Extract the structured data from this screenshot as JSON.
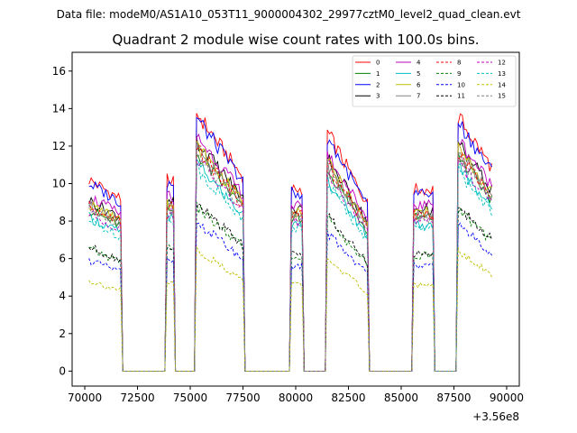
{
  "header": {
    "data_file": "Data file: modeM0/AS1A10_053T11_9000004302_29977cztM0_level2_quad_clean.evt"
  },
  "chart_data": {
    "type": "line",
    "title": "Quadrant 2 module wise count rates with 100.0s bins.",
    "xlabel": "",
    "ylabel": "",
    "x_offset_label": "+3.56e8",
    "xlim": [
      69400,
      90600
    ],
    "ylim": [
      -0.8,
      17
    ],
    "xticks": [
      70000,
      72500,
      75000,
      77500,
      80000,
      82500,
      85000,
      87500,
      90000
    ],
    "xtick_labels": [
      "70000",
      "72500",
      "75000",
      "77500",
      "80000",
      "82500",
      "85000",
      "87500",
      "90000"
    ],
    "yticks": [
      0,
      2,
      4,
      6,
      8,
      10,
      12,
      14,
      16
    ],
    "ytick_labels": [
      "0",
      "2",
      "4",
      "6",
      "8",
      "10",
      "12",
      "14",
      "16"
    ],
    "legend_position": "upper right",
    "segments": [
      {
        "start": 70200,
        "end": 71700,
        "scale": 1.0,
        "slope": 0.1
      },
      {
        "start": 73900,
        "end": 74200,
        "scale": 1.0,
        "slope": 0.0
      },
      {
        "start": 75300,
        "end": 77500,
        "scale": 1.35,
        "slope": 0.25
      },
      {
        "start": 79800,
        "end": 80300,
        "scale": 0.95,
        "slope": 0.0
      },
      {
        "start": 81500,
        "end": 83400,
        "scale": 1.25,
        "slope": 0.3
      },
      {
        "start": 85600,
        "end": 86500,
        "scale": 0.95,
        "slope": 0.0
      },
      {
        "start": 87700,
        "end": 89300,
        "scale": 1.33,
        "slope": 0.2
      }
    ],
    "series": [
      {
        "name": "0",
        "level": 10.2,
        "color": "#ff0000",
        "dashed": false
      },
      {
        "name": "1",
        "level": 8.6,
        "color": "#008000",
        "dashed": false
      },
      {
        "name": "2",
        "level": 10.0,
        "color": "#0000ff",
        "dashed": false
      },
      {
        "name": "3",
        "level": 9.1,
        "color": "#000000",
        "dashed": false
      },
      {
        "name": "4",
        "level": 9.3,
        "color": "#bf00bf",
        "dashed": false
      },
      {
        "name": "5",
        "level": 8.2,
        "color": "#00bfbf",
        "dashed": false
      },
      {
        "name": "6",
        "level": 8.9,
        "color": "#bfbf00",
        "dashed": false
      },
      {
        "name": "7",
        "level": 8.8,
        "color": "#808080",
        "dashed": false
      },
      {
        "name": "8",
        "level": 8.8,
        "color": "#ff0000",
        "dashed": true
      },
      {
        "name": "9",
        "level": 6.5,
        "color": "#008000",
        "dashed": true
      },
      {
        "name": "10",
        "level": 5.9,
        "color": "#0000ff",
        "dashed": true
      },
      {
        "name": "11",
        "level": 6.6,
        "color": "#000000",
        "dashed": true
      },
      {
        "name": "12",
        "level": 8.4,
        "color": "#bf00bf",
        "dashed": true
      },
      {
        "name": "13",
        "level": 8.0,
        "color": "#00bfbf",
        "dashed": true
      },
      {
        "name": "14",
        "level": 4.8,
        "color": "#bfbf00",
        "dashed": true
      },
      {
        "name": "15",
        "level": 8.6,
        "color": "#808080",
        "dashed": true
      }
    ]
  }
}
